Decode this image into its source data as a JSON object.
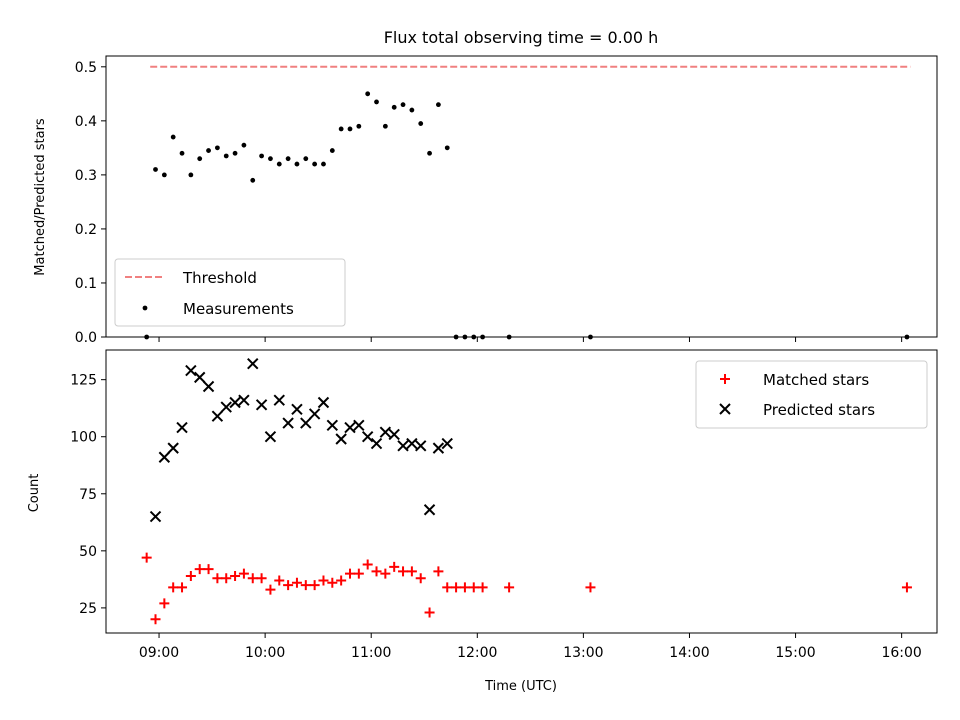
{
  "chart_data": [
    {
      "type": "scatter",
      "title": "Flux total observing time = 0.00 h",
      "xlabel": "",
      "ylabel": "Matched/Predicted stars",
      "ylim": [
        0,
        0.52
      ],
      "yticks": [
        "0.0",
        "0.1",
        "0.2",
        "0.3",
        "0.4",
        "0.5"
      ],
      "yticks_values": [
        0,
        0.1,
        0.2,
        0.3,
        0.4,
        0.5
      ],
      "legend_position": "lower-left",
      "series": [
        {
          "name": "Threshold",
          "kind": "dashed-line",
          "color": "#f08080",
          "x": [
            "08:55",
            "16:05"
          ],
          "y": [
            0.5,
            0.5
          ]
        },
        {
          "name": "Measurements",
          "kind": "dot",
          "color": "#000000",
          "x": [
            "08:53",
            "08:58",
            "09:03",
            "09:08",
            "09:13",
            "09:18",
            "09:23",
            "09:28",
            "09:33",
            "09:38",
            "09:43",
            "09:48",
            "09:53",
            "09:58",
            "10:03",
            "10:08",
            "10:13",
            "10:18",
            "10:23",
            "10:28",
            "10:33",
            "10:38",
            "10:43",
            "10:48",
            "10:53",
            "10:58",
            "11:03",
            "11:08",
            "11:13",
            "11:18",
            "11:23",
            "11:28",
            "11:33",
            "11:38",
            "11:43",
            "11:48",
            "11:53",
            "11:58",
            "12:03",
            "12:18",
            "13:04",
            "16:03"
          ],
          "y": [
            0.0,
            0.31,
            0.3,
            0.37,
            0.34,
            0.3,
            0.33,
            0.345,
            0.35,
            0.335,
            0.34,
            0.355,
            0.29,
            0.335,
            0.33,
            0.32,
            0.33,
            0.32,
            0.33,
            0.32,
            0.32,
            0.345,
            0.385,
            0.385,
            0.39,
            0.45,
            0.435,
            0.39,
            0.425,
            0.43,
            0.42,
            0.395,
            0.34,
            0.43,
            0.35,
            0.0,
            0.0,
            0.0,
            0.0,
            0.0,
            0.0,
            0.0
          ]
        }
      ]
    },
    {
      "type": "scatter",
      "title": "",
      "xlabel": "Time (UTC)",
      "ylabel": "Count",
      "ylim": [
        14,
        138
      ],
      "yticks": [
        "25",
        "50",
        "75",
        "100",
        "125"
      ],
      "yticks_values": [
        25,
        50,
        75,
        100,
        125
      ],
      "xticks": [
        "09:00",
        "10:00",
        "11:00",
        "12:00",
        "13:00",
        "14:00",
        "15:00",
        "16:00"
      ],
      "xticks_values": [
        "09:00",
        "10:00",
        "11:00",
        "12:00",
        "13:00",
        "14:00",
        "15:00",
        "16:00"
      ],
      "xlim": [
        "08:30",
        "16:20"
      ],
      "legend_position": "upper-right",
      "series": [
        {
          "name": "Matched stars",
          "kind": "plus",
          "color": "#ff0000",
          "x": [
            "08:53",
            "08:58",
            "09:03",
            "09:08",
            "09:13",
            "09:18",
            "09:23",
            "09:28",
            "09:33",
            "09:38",
            "09:43",
            "09:48",
            "09:53",
            "09:58",
            "10:03",
            "10:08",
            "10:13",
            "10:18",
            "10:23",
            "10:28",
            "10:33",
            "10:38",
            "10:43",
            "10:48",
            "10:53",
            "10:58",
            "11:03",
            "11:08",
            "11:13",
            "11:18",
            "11:23",
            "11:28",
            "11:33",
            "11:38",
            "11:43",
            "11:48",
            "11:53",
            "11:58",
            "12:03",
            "12:18",
            "13:04",
            "16:03"
          ],
          "y": [
            47,
            20,
            27,
            34,
            34,
            39,
            42,
            42,
            38,
            38,
            39,
            40,
            38,
            38,
            33,
            37,
            35,
            36,
            35,
            35,
            37,
            36,
            37,
            40,
            40,
            44,
            41,
            40,
            43,
            41,
            41,
            38,
            23,
            41,
            34,
            34,
            34,
            34,
            34,
            34,
            34,
            34
          ]
        },
        {
          "name": "Predicted stars",
          "kind": "cross",
          "color": "#000000",
          "x": [
            "08:58",
            "09:03",
            "09:08",
            "09:13",
            "09:18",
            "09:23",
            "09:28",
            "09:33",
            "09:38",
            "09:43",
            "09:48",
            "09:53",
            "09:58",
            "10:03",
            "10:08",
            "10:13",
            "10:18",
            "10:23",
            "10:28",
            "10:33",
            "10:38",
            "10:43",
            "10:48",
            "10:53",
            "10:58",
            "11:03",
            "11:08",
            "11:13",
            "11:18",
            "11:23",
            "11:28",
            "11:33",
            "11:38",
            "11:43"
          ],
          "y": [
            65,
            91,
            95,
            104,
            129,
            126,
            122,
            109,
            113,
            115,
            116,
            132,
            114,
            100,
            116,
            106,
            112,
            106,
            110,
            115,
            105,
            99,
            104,
            105,
            100,
            97,
            102,
            101,
            96,
            97,
            96,
            68,
            95,
            97
          ]
        }
      ]
    }
  ]
}
